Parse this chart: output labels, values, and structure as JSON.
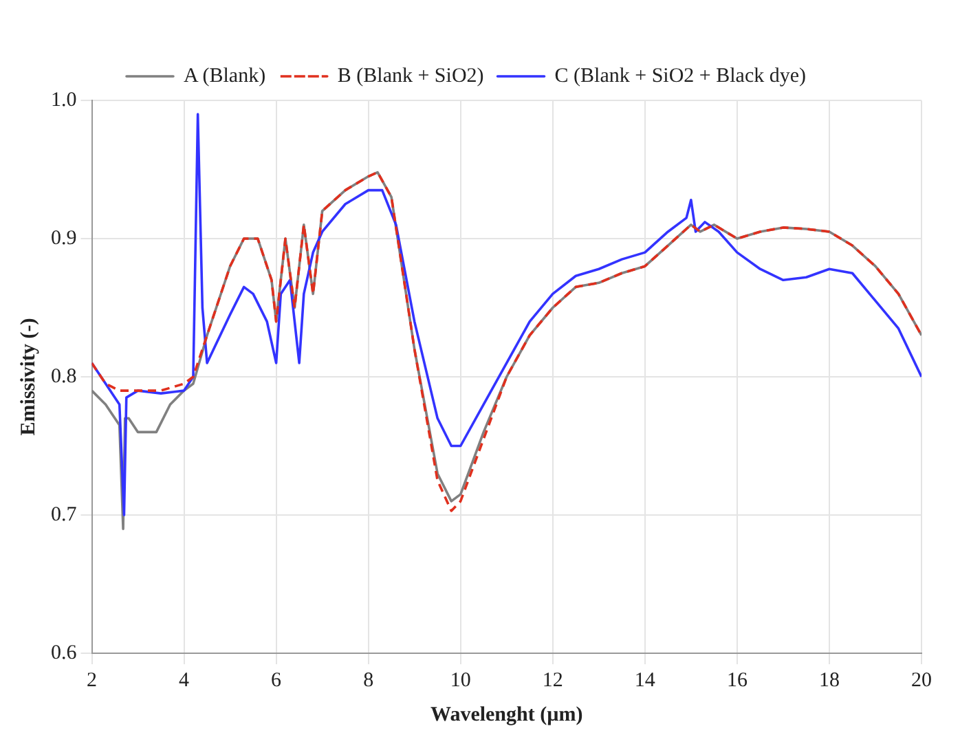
{
  "chart_data": {
    "type": "line",
    "xlabel": "Wavelenght (µm)",
    "ylabel": "Emissivity (-)",
    "xlim": [
      2,
      20
    ],
    "xticks": [
      2,
      4,
      6,
      8,
      10,
      12,
      14,
      16,
      18,
      20
    ],
    "ylim": [
      0.6,
      1.0
    ],
    "yticks": [
      0.6,
      0.7,
      0.8,
      0.9,
      {
        "value": 1.0,
        "label": "1.0"
      }
    ],
    "grid": true,
    "legend": "top",
    "marker": "none",
    "series": [
      {
        "name": "A (Blank)",
        "color": "#808080",
        "line_style": "solid",
        "x": [
          2.0,
          2.3,
          2.6,
          2.68,
          2.72,
          2.8,
          3.0,
          3.4,
          3.7,
          4.0,
          4.2,
          4.5,
          5.0,
          5.3,
          5.6,
          5.9,
          6.0,
          6.2,
          6.4,
          6.6,
          6.8,
          7.0,
          7.5,
          8.0,
          8.2,
          8.5,
          9.0,
          9.5,
          9.8,
          10.0,
          10.5,
          11.0,
          11.5,
          12.0,
          12.5,
          13.0,
          13.5,
          14.0,
          14.5,
          15.0,
          15.2,
          15.5,
          16.0,
          16.5,
          17.0,
          17.5,
          18.0,
          18.5,
          19.0,
          19.5,
          20.0
        ],
        "values": [
          0.79,
          0.78,
          0.765,
          0.69,
          0.77,
          0.77,
          0.76,
          0.76,
          0.78,
          0.79,
          0.795,
          0.83,
          0.88,
          0.9,
          0.9,
          0.87,
          0.84,
          0.9,
          0.85,
          0.91,
          0.86,
          0.92,
          0.935,
          0.945,
          0.948,
          0.93,
          0.82,
          0.73,
          0.71,
          0.715,
          0.76,
          0.8,
          0.83,
          0.85,
          0.865,
          0.868,
          0.875,
          0.88,
          0.895,
          0.91,
          0.905,
          0.91,
          0.9,
          0.905,
          0.908,
          0.907,
          0.905,
          0.895,
          0.88,
          0.86,
          0.83
        ]
      },
      {
        "name": "B (Blank + SiO2)",
        "color": "#e0301e",
        "line_style": "dashed",
        "x": [
          2.0,
          2.3,
          2.6,
          3.0,
          3.5,
          4.0,
          4.2,
          4.5,
          5.0,
          5.3,
          5.6,
          5.9,
          6.0,
          6.2,
          6.4,
          6.6,
          6.8,
          7.0,
          7.5,
          8.0,
          8.2,
          8.5,
          9.0,
          9.5,
          9.8,
          10.0,
          10.5,
          11.0,
          11.5,
          12.0,
          12.5,
          13.0,
          13.5,
          14.0,
          14.5,
          15.0,
          15.2,
          15.5,
          16.0,
          16.5,
          17.0,
          17.5,
          18.0,
          18.5,
          19.0,
          19.5,
          20.0
        ],
        "values": [
          0.81,
          0.795,
          0.79,
          0.79,
          0.79,
          0.795,
          0.8,
          0.83,
          0.88,
          0.9,
          0.9,
          0.87,
          0.84,
          0.9,
          0.85,
          0.91,
          0.86,
          0.92,
          0.935,
          0.945,
          0.948,
          0.93,
          0.82,
          0.725,
          0.703,
          0.71,
          0.755,
          0.8,
          0.83,
          0.85,
          0.865,
          0.868,
          0.875,
          0.88,
          0.895,
          0.91,
          0.905,
          0.91,
          0.9,
          0.905,
          0.908,
          0.907,
          0.905,
          0.895,
          0.88,
          0.86,
          0.83
        ]
      },
      {
        "name": "C (Blank + SiO2 + Black dye)",
        "color": "#3333ff",
        "line_style": "solid",
        "x": [
          2.0,
          2.3,
          2.6,
          2.7,
          2.75,
          3.0,
          3.5,
          4.0,
          4.2,
          4.3,
          4.4,
          4.5,
          5.0,
          5.3,
          5.5,
          5.8,
          6.0,
          6.1,
          6.3,
          6.5,
          6.6,
          6.8,
          7.0,
          7.5,
          8.0,
          8.3,
          8.6,
          9.0,
          9.5,
          9.8,
          10.0,
          10.5,
          11.0,
          11.5,
          12.0,
          12.5,
          13.0,
          13.5,
          14.0,
          14.5,
          14.9,
          15.0,
          15.1,
          15.3,
          15.6,
          16.0,
          16.5,
          17.0,
          17.5,
          18.0,
          18.5,
          19.0,
          19.5,
          20.0
        ],
        "values": [
          0.81,
          0.795,
          0.78,
          0.7,
          0.785,
          0.79,
          0.788,
          0.79,
          0.8,
          0.99,
          0.85,
          0.81,
          0.845,
          0.865,
          0.86,
          0.84,
          0.81,
          0.86,
          0.87,
          0.81,
          0.86,
          0.89,
          0.905,
          0.925,
          0.935,
          0.935,
          0.91,
          0.84,
          0.77,
          0.75,
          0.75,
          0.78,
          0.81,
          0.84,
          0.86,
          0.873,
          0.878,
          0.885,
          0.89,
          0.905,
          0.915,
          0.928,
          0.905,
          0.912,
          0.905,
          0.89,
          0.878,
          0.87,
          0.872,
          0.878,
          0.875,
          0.855,
          0.835,
          0.8
        ]
      }
    ]
  }
}
